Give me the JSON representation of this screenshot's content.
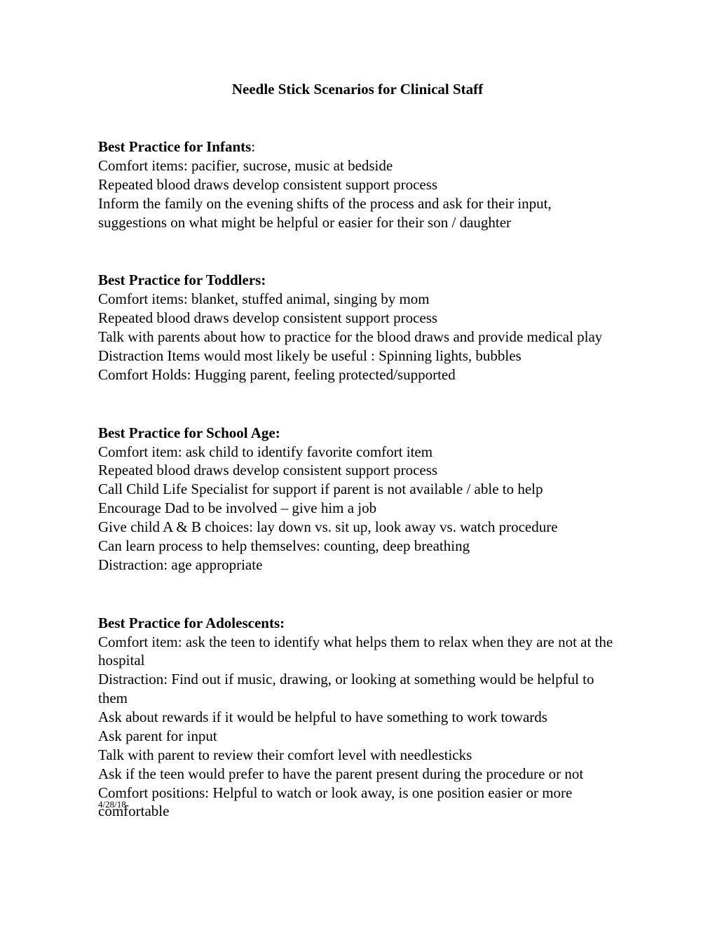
{
  "title": "Needle Stick Scenarios for Clinical Staff",
  "sections": [
    {
      "heading": "Best Practice for Infants",
      "colon": ":",
      "lines": [
        "Comfort items: pacifier, sucrose, music at bedside",
        "Repeated blood draws develop consistent support process",
        "Inform the family on the evening shifts of the process and ask for their input, suggestions on what might be helpful or easier for their son / daughter"
      ]
    },
    {
      "heading": "Best Practice for Toddlers:",
      "colon": "",
      "lines": [
        "Comfort items: blanket, stuffed animal, singing by mom",
        "Repeated blood draws develop consistent support process",
        "Talk with parents about how to practice for the blood draws and provide medical play",
        "Distraction Items would most likely be useful : Spinning lights, bubbles",
        "Comfort Holds: Hugging parent, feeling protected/supported"
      ]
    },
    {
      "heading": "Best Practice for School Age:",
      "colon": "",
      "lines": [
        "Comfort item: ask child to identify favorite comfort item",
        "Repeated blood draws develop consistent support process",
        "Call Child Life Specialist for support if parent is not available / able to help",
        "Encourage Dad to be involved – give him a job",
        "Give child A & B choices: lay down vs. sit up, look away vs. watch procedure",
        "Can learn process to help themselves: counting, deep breathing",
        "Distraction:  age appropriate"
      ]
    },
    {
      "heading": "Best Practice for Adolescents:",
      "colon": "",
      "lines": [
        "Comfort item: ask the teen to identify what helps them to relax when they are not at the hospital",
        "Distraction: Find out if music, drawing, or looking at something would be helpful to them",
        "Ask about rewards if it would be helpful to have something to work towards",
        "Ask parent for input",
        "Talk with parent to review their comfort level with needlesticks",
        "Ask if the teen would prefer to have the parent present during the procedure or not",
        "Comfort positions:  Helpful to watch or look away, is one position easier or more comfortable"
      ]
    }
  ],
  "footer": "4/28/18"
}
